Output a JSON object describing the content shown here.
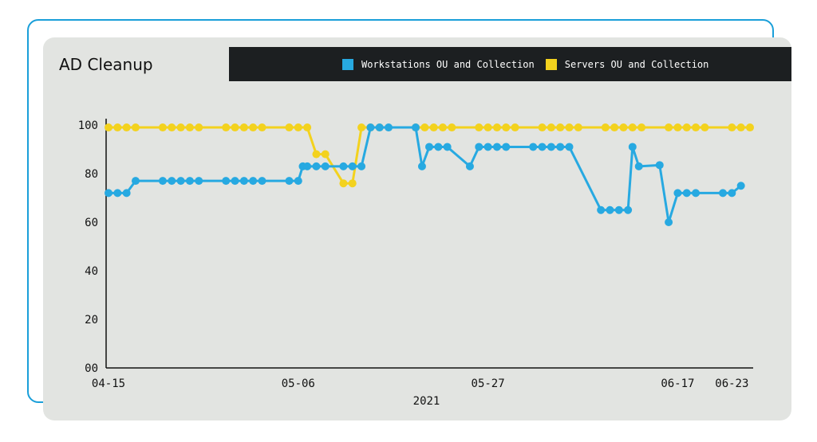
{
  "chart_data": {
    "type": "line",
    "title": "AD Cleanup",
    "xlabel": "2021",
    "ylabel": "",
    "ylim": [
      0,
      100
    ],
    "yticks": [
      "00",
      "20",
      "40",
      "60",
      "80",
      "100"
    ],
    "xtick_labels": [
      {
        "label": "04-15",
        "day": 0
      },
      {
        "label": "05-06",
        "day": 21
      },
      {
        "label": "05-27",
        "day": 42
      },
      {
        "label": "06-17",
        "day": 63
      },
      {
        "label": "06-23",
        "day": 69
      }
    ],
    "legend_position": "top",
    "series": [
      {
        "name": "Workstations OU and Collection",
        "color": "#27a9e1",
        "points": [
          [
            0,
            72
          ],
          [
            1,
            72
          ],
          [
            2,
            72
          ],
          [
            3,
            77
          ],
          [
            6,
            77
          ],
          [
            7,
            77
          ],
          [
            8,
            77
          ],
          [
            9,
            77
          ],
          [
            10,
            77
          ],
          [
            13,
            77
          ],
          [
            14,
            77
          ],
          [
            15,
            77
          ],
          [
            16,
            77
          ],
          [
            17,
            77
          ],
          [
            20,
            77
          ],
          [
            21,
            77
          ],
          [
            21.5,
            83
          ],
          [
            22,
            83
          ],
          [
            23,
            83
          ],
          [
            24,
            83
          ],
          [
            26,
            83
          ],
          [
            27,
            83
          ],
          [
            28,
            83
          ],
          [
            29,
            99
          ],
          [
            30,
            99
          ],
          [
            31,
            99
          ],
          [
            34,
            99
          ],
          [
            34.7,
            83
          ],
          [
            35.5,
            91
          ],
          [
            36.5,
            91
          ],
          [
            37.5,
            91
          ],
          [
            40,
            83
          ],
          [
            41,
            91
          ],
          [
            42,
            91
          ],
          [
            43,
            91
          ],
          [
            44,
            91
          ],
          [
            47,
            91
          ],
          [
            48,
            91
          ],
          [
            49,
            91
          ],
          [
            50,
            91
          ],
          [
            51,
            91
          ],
          [
            54.5,
            65
          ],
          [
            55.5,
            65
          ],
          [
            56.5,
            65
          ],
          [
            57.5,
            65
          ],
          [
            58,
            91
          ],
          [
            58.7,
            83
          ],
          [
            61,
            83.5
          ],
          [
            62,
            60
          ],
          [
            63,
            72
          ],
          [
            64,
            72
          ],
          [
            65,
            72
          ],
          [
            68,
            72
          ],
          [
            69,
            72
          ],
          [
            70,
            75
          ]
        ]
      },
      {
        "name": "Servers OU and Collection",
        "color": "#f3d21e",
        "points": [
          [
            0,
            99
          ],
          [
            1,
            99
          ],
          [
            2,
            99
          ],
          [
            3,
            99
          ],
          [
            6,
            99
          ],
          [
            7,
            99
          ],
          [
            8,
            99
          ],
          [
            9,
            99
          ],
          [
            10,
            99
          ],
          [
            13,
            99
          ],
          [
            14,
            99
          ],
          [
            15,
            99
          ],
          [
            16,
            99
          ],
          [
            17,
            99
          ],
          [
            20,
            99
          ],
          [
            21,
            99
          ],
          [
            22,
            99
          ],
          [
            23,
            88
          ],
          [
            24,
            88
          ],
          [
            26,
            76
          ],
          [
            27,
            76
          ],
          [
            28,
            99
          ],
          [
            29,
            99
          ],
          [
            30,
            99
          ],
          [
            34,
            99
          ],
          [
            35,
            99
          ],
          [
            36,
            99
          ],
          [
            37,
            99
          ],
          [
            38,
            99
          ],
          [
            41,
            99
          ],
          [
            42,
            99
          ],
          [
            43,
            99
          ],
          [
            44,
            99
          ],
          [
            45,
            99
          ],
          [
            48,
            99
          ],
          [
            49,
            99
          ],
          [
            50,
            99
          ],
          [
            51,
            99
          ],
          [
            52,
            99
          ],
          [
            55,
            99
          ],
          [
            56,
            99
          ],
          [
            57,
            99
          ],
          [
            58,
            99
          ],
          [
            59,
            99
          ],
          [
            62,
            99
          ],
          [
            63,
            99
          ],
          [
            64,
            99
          ],
          [
            65,
            99
          ],
          [
            66,
            99
          ],
          [
            69,
            99
          ],
          [
            70,
            99
          ],
          [
            71,
            99
          ]
        ]
      }
    ]
  },
  "colors": {
    "frame": "#1a9fd9",
    "card_bg": "#e2e4e1",
    "legend_bg": "#1c1f21"
  }
}
